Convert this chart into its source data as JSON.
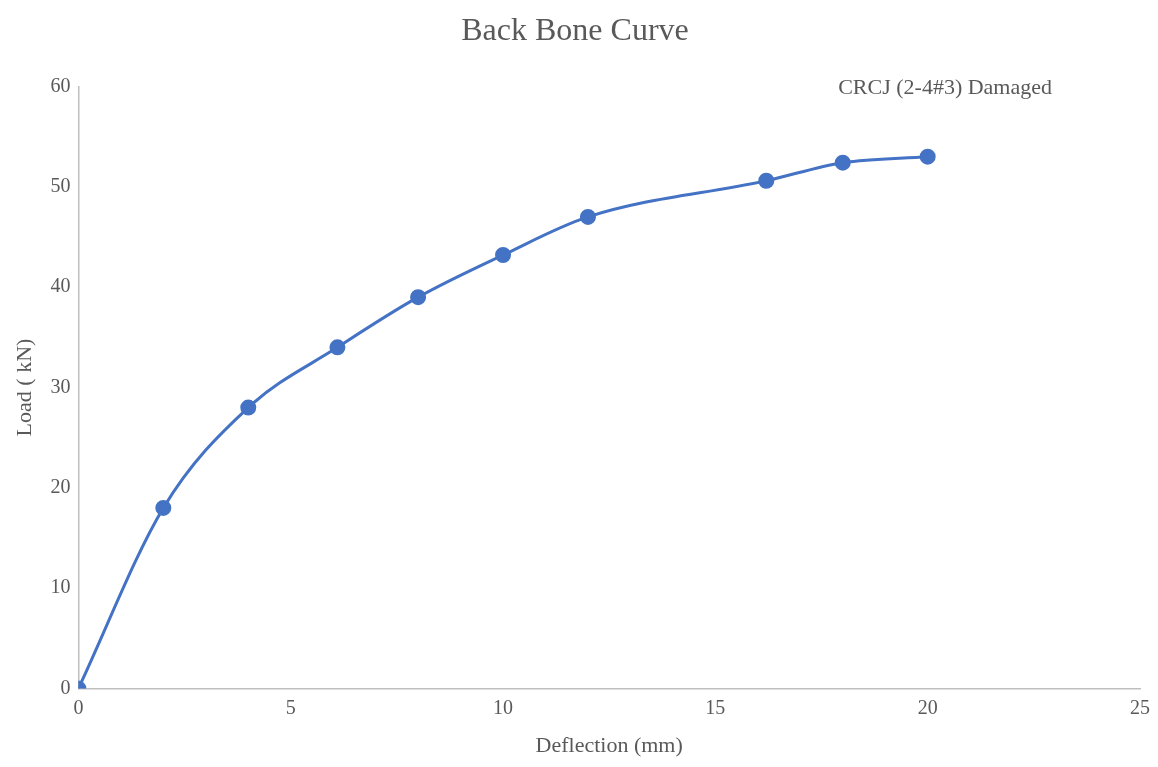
{
  "chart_data": {
    "type": "scatter",
    "title": "Back Bone Curve",
    "xlabel": "Deflection (mm)",
    "ylabel": "Load ( kN)",
    "x": [
      0,
      2,
      4,
      6.1,
      8,
      10,
      12,
      16.2,
      18,
      20
    ],
    "series": [
      {
        "type": "line",
        "color": "#4472c4",
        "values": [
          0,
          18,
          28,
          34,
          39,
          43.2,
          47,
          50.6,
          52.4,
          53
        ]
      }
    ],
    "xlim": [
      0,
      25
    ],
    "xticks": [
      0,
      5,
      10,
      15,
      20,
      25
    ],
    "ylim": [
      0,
      60
    ],
    "yticks": [
      0,
      10,
      20,
      30,
      40,
      50,
      60
    ],
    "grid": false,
    "legend": false,
    "marker": "circle",
    "line_style": "solid",
    "annotations": [
      "CRCJ (2-4#3) Damaged"
    ]
  }
}
